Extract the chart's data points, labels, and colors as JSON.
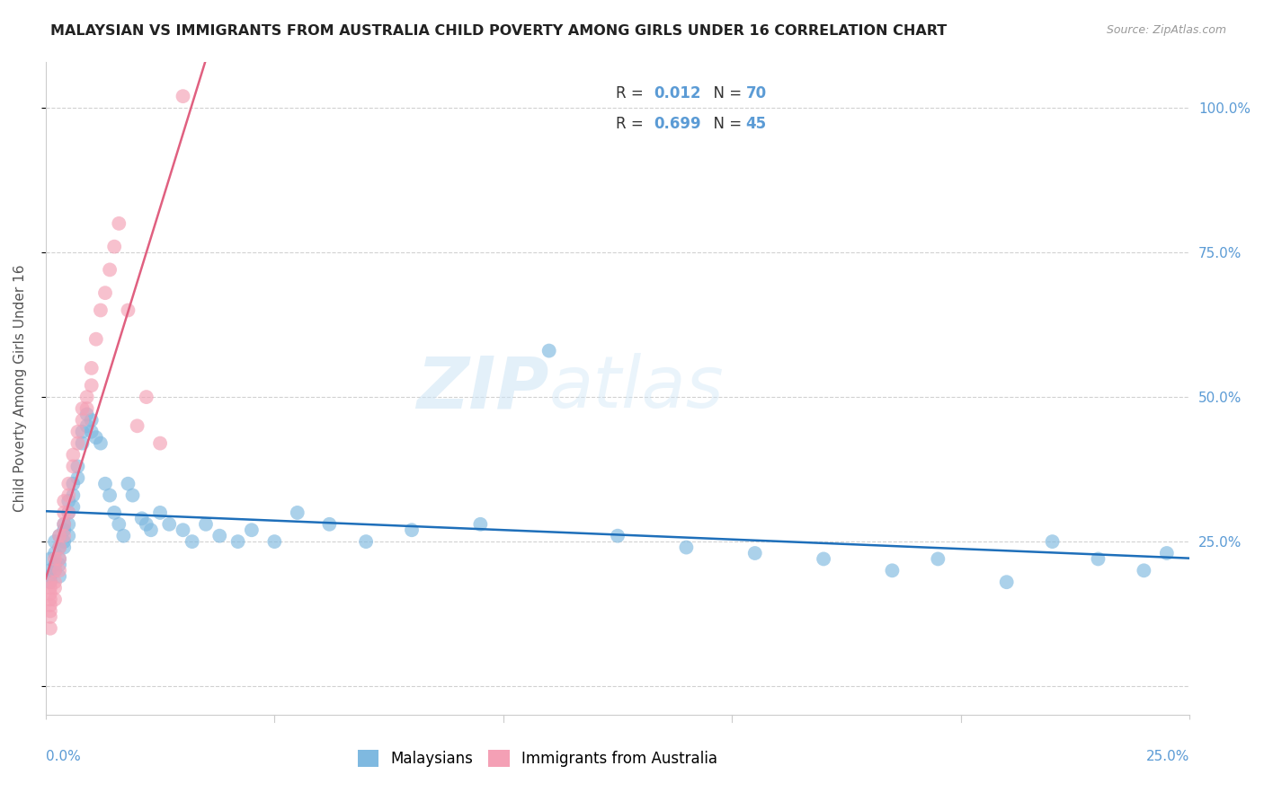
{
  "title": "MALAYSIAN VS IMMIGRANTS FROM AUSTRALIA CHILD POVERTY AMONG GIRLS UNDER 16 CORRELATION CHART",
  "source": "Source: ZipAtlas.com",
  "ylabel": "Child Poverty Among Girls Under 16",
  "xmin": 0.0,
  "xmax": 0.25,
  "ymin": -0.05,
  "ymax": 1.08,
  "blue_R": "0.012",
  "blue_N": "70",
  "pink_R": "0.699",
  "pink_N": "45",
  "legend_label1": "Malaysians",
  "legend_label2": "Immigrants from Australia",
  "watermark_zip": "ZIP",
  "watermark_atlas": "atlas",
  "blue_color": "#7fb9e0",
  "pink_color": "#f4a0b5",
  "blue_line_color": "#1e6fba",
  "pink_line_color": "#e06080",
  "r_n_color": "#5b9bd5",
  "label_color": "#5b9bd5",
  "grid_color": "#cccccc",
  "malaysians_x": [
    0.001,
    0.001,
    0.001,
    0.001,
    0.002,
    0.002,
    0.002,
    0.002,
    0.003,
    0.003,
    0.003,
    0.003,
    0.003,
    0.004,
    0.004,
    0.004,
    0.004,
    0.005,
    0.005,
    0.005,
    0.005,
    0.006,
    0.006,
    0.006,
    0.007,
    0.007,
    0.008,
    0.008,
    0.009,
    0.009,
    0.01,
    0.01,
    0.011,
    0.012,
    0.013,
    0.014,
    0.015,
    0.016,
    0.017,
    0.018,
    0.019,
    0.021,
    0.022,
    0.023,
    0.025,
    0.027,
    0.03,
    0.032,
    0.035,
    0.038,
    0.042,
    0.045,
    0.05,
    0.055,
    0.062,
    0.07,
    0.08,
    0.095,
    0.11,
    0.125,
    0.14,
    0.155,
    0.17,
    0.185,
    0.195,
    0.21,
    0.22,
    0.23,
    0.24,
    0.245
  ],
  "malaysians_y": [
    0.22,
    0.2,
    0.19,
    0.18,
    0.25,
    0.23,
    0.21,
    0.2,
    0.26,
    0.24,
    0.22,
    0.21,
    0.19,
    0.28,
    0.27,
    0.25,
    0.24,
    0.32,
    0.3,
    0.28,
    0.26,
    0.35,
    0.33,
    0.31,
    0.38,
    0.36,
    0.44,
    0.42,
    0.47,
    0.45,
    0.46,
    0.44,
    0.43,
    0.42,
    0.35,
    0.33,
    0.3,
    0.28,
    0.26,
    0.35,
    0.33,
    0.29,
    0.28,
    0.27,
    0.3,
    0.28,
    0.27,
    0.25,
    0.28,
    0.26,
    0.25,
    0.27,
    0.25,
    0.3,
    0.28,
    0.25,
    0.27,
    0.28,
    0.58,
    0.26,
    0.24,
    0.23,
    0.22,
    0.2,
    0.22,
    0.18,
    0.25,
    0.22,
    0.2,
    0.23
  ],
  "australia_x": [
    0.001,
    0.001,
    0.001,
    0.001,
    0.001,
    0.001,
    0.001,
    0.001,
    0.002,
    0.002,
    0.002,
    0.002,
    0.002,
    0.003,
    0.003,
    0.003,
    0.003,
    0.004,
    0.004,
    0.004,
    0.004,
    0.005,
    0.005,
    0.005,
    0.006,
    0.006,
    0.007,
    0.007,
    0.008,
    0.008,
    0.009,
    0.009,
    0.01,
    0.01,
    0.011,
    0.012,
    0.013,
    0.014,
    0.015,
    0.016,
    0.018,
    0.02,
    0.022,
    0.025,
    0.03
  ],
  "australia_y": [
    0.18,
    0.17,
    0.16,
    0.15,
    0.14,
    0.13,
    0.12,
    0.1,
    0.22,
    0.2,
    0.18,
    0.17,
    0.15,
    0.26,
    0.24,
    0.22,
    0.2,
    0.32,
    0.3,
    0.28,
    0.26,
    0.35,
    0.33,
    0.3,
    0.4,
    0.38,
    0.44,
    0.42,
    0.48,
    0.46,
    0.5,
    0.48,
    0.55,
    0.52,
    0.6,
    0.65,
    0.68,
    0.72,
    0.76,
    0.8,
    0.65,
    0.45,
    0.5,
    0.42,
    1.02
  ]
}
